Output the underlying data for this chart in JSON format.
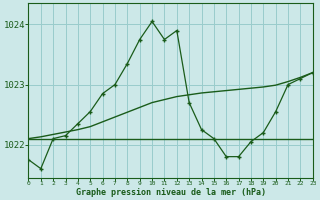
{
  "hours": [
    0,
    1,
    2,
    3,
    4,
    5,
    6,
    7,
    8,
    9,
    10,
    11,
    12,
    13,
    14,
    15,
    16,
    17,
    18,
    19,
    20,
    21,
    22,
    23
  ],
  "pressure_zigzag": [
    1021.75,
    1021.6,
    1022.1,
    1022.15,
    1022.35,
    1022.55,
    1022.85,
    1023.0,
    1023.35,
    1023.75,
    1024.05,
    1023.75,
    1023.9,
    1022.7,
    1022.25,
    1022.1,
    1021.8,
    1021.8,
    1022.05,
    1022.2,
    1022.55,
    1023.0,
    1023.1,
    1023.2
  ],
  "pressure_flat": [
    1022.1,
    1022.1,
    1022.1,
    1022.1,
    1022.1,
    1022.1,
    1022.1,
    1022.1,
    1022.1,
    1022.1,
    1022.1,
    1022.1,
    1022.1,
    1022.1,
    1022.1,
    1022.1,
    1022.1,
    1022.1,
    1022.1,
    1022.1,
    1022.1,
    1022.1,
    1022.1,
    1022.1
  ],
  "pressure_slope": [
    1022.1,
    1022.13,
    1022.17,
    1022.21,
    1022.25,
    1022.3,
    1022.38,
    1022.46,
    1022.54,
    1022.62,
    1022.7,
    1022.75,
    1022.8,
    1022.83,
    1022.86,
    1022.88,
    1022.9,
    1022.92,
    1022.94,
    1022.96,
    1022.99,
    1023.05,
    1023.12,
    1023.2
  ],
  "line_color": "#1a5c1a",
  "bg_color": "#cce8e8",
  "grid_color": "#99cccc",
  "xlabel": "Graphe pression niveau de la mer (hPa)",
  "ylim": [
    1021.45,
    1024.35
  ],
  "yticks": [
    1022,
    1023,
    1024
  ],
  "xlim": [
    0,
    23
  ]
}
